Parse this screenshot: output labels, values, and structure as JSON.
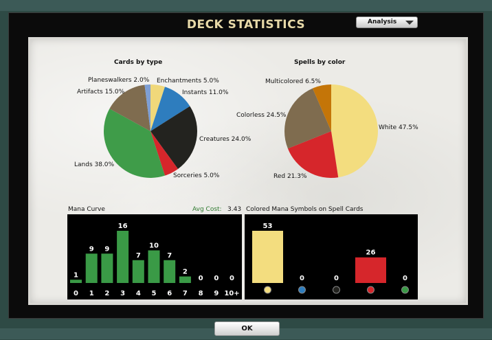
{
  "dialog": {
    "title": "DECK STATISTICS",
    "view_dropdown": "Analysis",
    "ok_label": "OK"
  },
  "colors": {
    "white": "#f3dd7f",
    "red": "#d6262b",
    "colorless": "#7f6c4f",
    "multicolored": "#c47508",
    "lands": "#3f9c49",
    "creatures": "#23231f",
    "instants": "#2e7dbe",
    "planeswalkers": "#7e9fd4",
    "bar_green": "#3a9a46"
  },
  "mana_curve": {
    "title": "Mana Curve",
    "avg_label": "Avg Cost:",
    "avg_value": "3.43"
  },
  "colored_symbols": {
    "title": "Colored Mana Symbols on Spell Cards"
  },
  "chart_data": [
    {
      "type": "pie",
      "title": "Cards by type",
      "slices": [
        {
          "label": "Enchantments 5.0%",
          "category": "Enchantments",
          "value": 5.0,
          "color": "#f0d87a"
        },
        {
          "label": "Instants 11.0%",
          "category": "Instants",
          "value": 11.0,
          "color": "#2e7dbe"
        },
        {
          "label": "Creatures 24.0%",
          "category": "Creatures",
          "value": 24.0,
          "color": "#23231f"
        },
        {
          "label": "Sorceries 5.0%",
          "category": "Sorceries",
          "value": 5.0,
          "color": "#d6262b"
        },
        {
          "label": "Lands 38.0%",
          "category": "Lands",
          "value": 38.0,
          "color": "#3f9c49"
        },
        {
          "label": "Artifacts 15.0%",
          "category": "Artifacts",
          "value": 15.0,
          "color": "#7f6c4f"
        },
        {
          "label": "Planeswalkers 2.0%",
          "category": "Planeswalkers",
          "value": 2.0,
          "color": "#7e9fd4"
        }
      ]
    },
    {
      "type": "pie",
      "title": "Spells by color",
      "slices": [
        {
          "label": "White 47.5%",
          "category": "White",
          "value": 47.5,
          "color": "#f3dd7f"
        },
        {
          "label": "Red 21.3%",
          "category": "Red",
          "value": 21.3,
          "color": "#d6262b"
        },
        {
          "label": "Colorless 24.5%",
          "category": "Colorless",
          "value": 24.5,
          "color": "#7f6c4f"
        },
        {
          "label": "Multicolored 6.5%",
          "category": "Multicolored",
          "value": 6.5,
          "color": "#c47508"
        }
      ]
    },
    {
      "type": "bar",
      "title": "Mana Curve",
      "categories": [
        "0",
        "1",
        "2",
        "3",
        "4",
        "5",
        "6",
        "7",
        "8",
        "9",
        "10+"
      ],
      "values": [
        1,
        9,
        9,
        16,
        7,
        10,
        7,
        2,
        0,
        0,
        0
      ],
      "ylim": [
        0,
        16
      ]
    },
    {
      "type": "bar",
      "title": "Colored Mana Symbols on Spell Cards",
      "categories": [
        "white",
        "blue",
        "black",
        "red",
        "green"
      ],
      "values": [
        53,
        0,
        0,
        26,
        0
      ],
      "colors": [
        "#f3dd7f",
        "#2e7dbe",
        "#23231f",
        "#d6262b",
        "#3a9a46"
      ],
      "ylim": [
        0,
        53
      ]
    }
  ]
}
